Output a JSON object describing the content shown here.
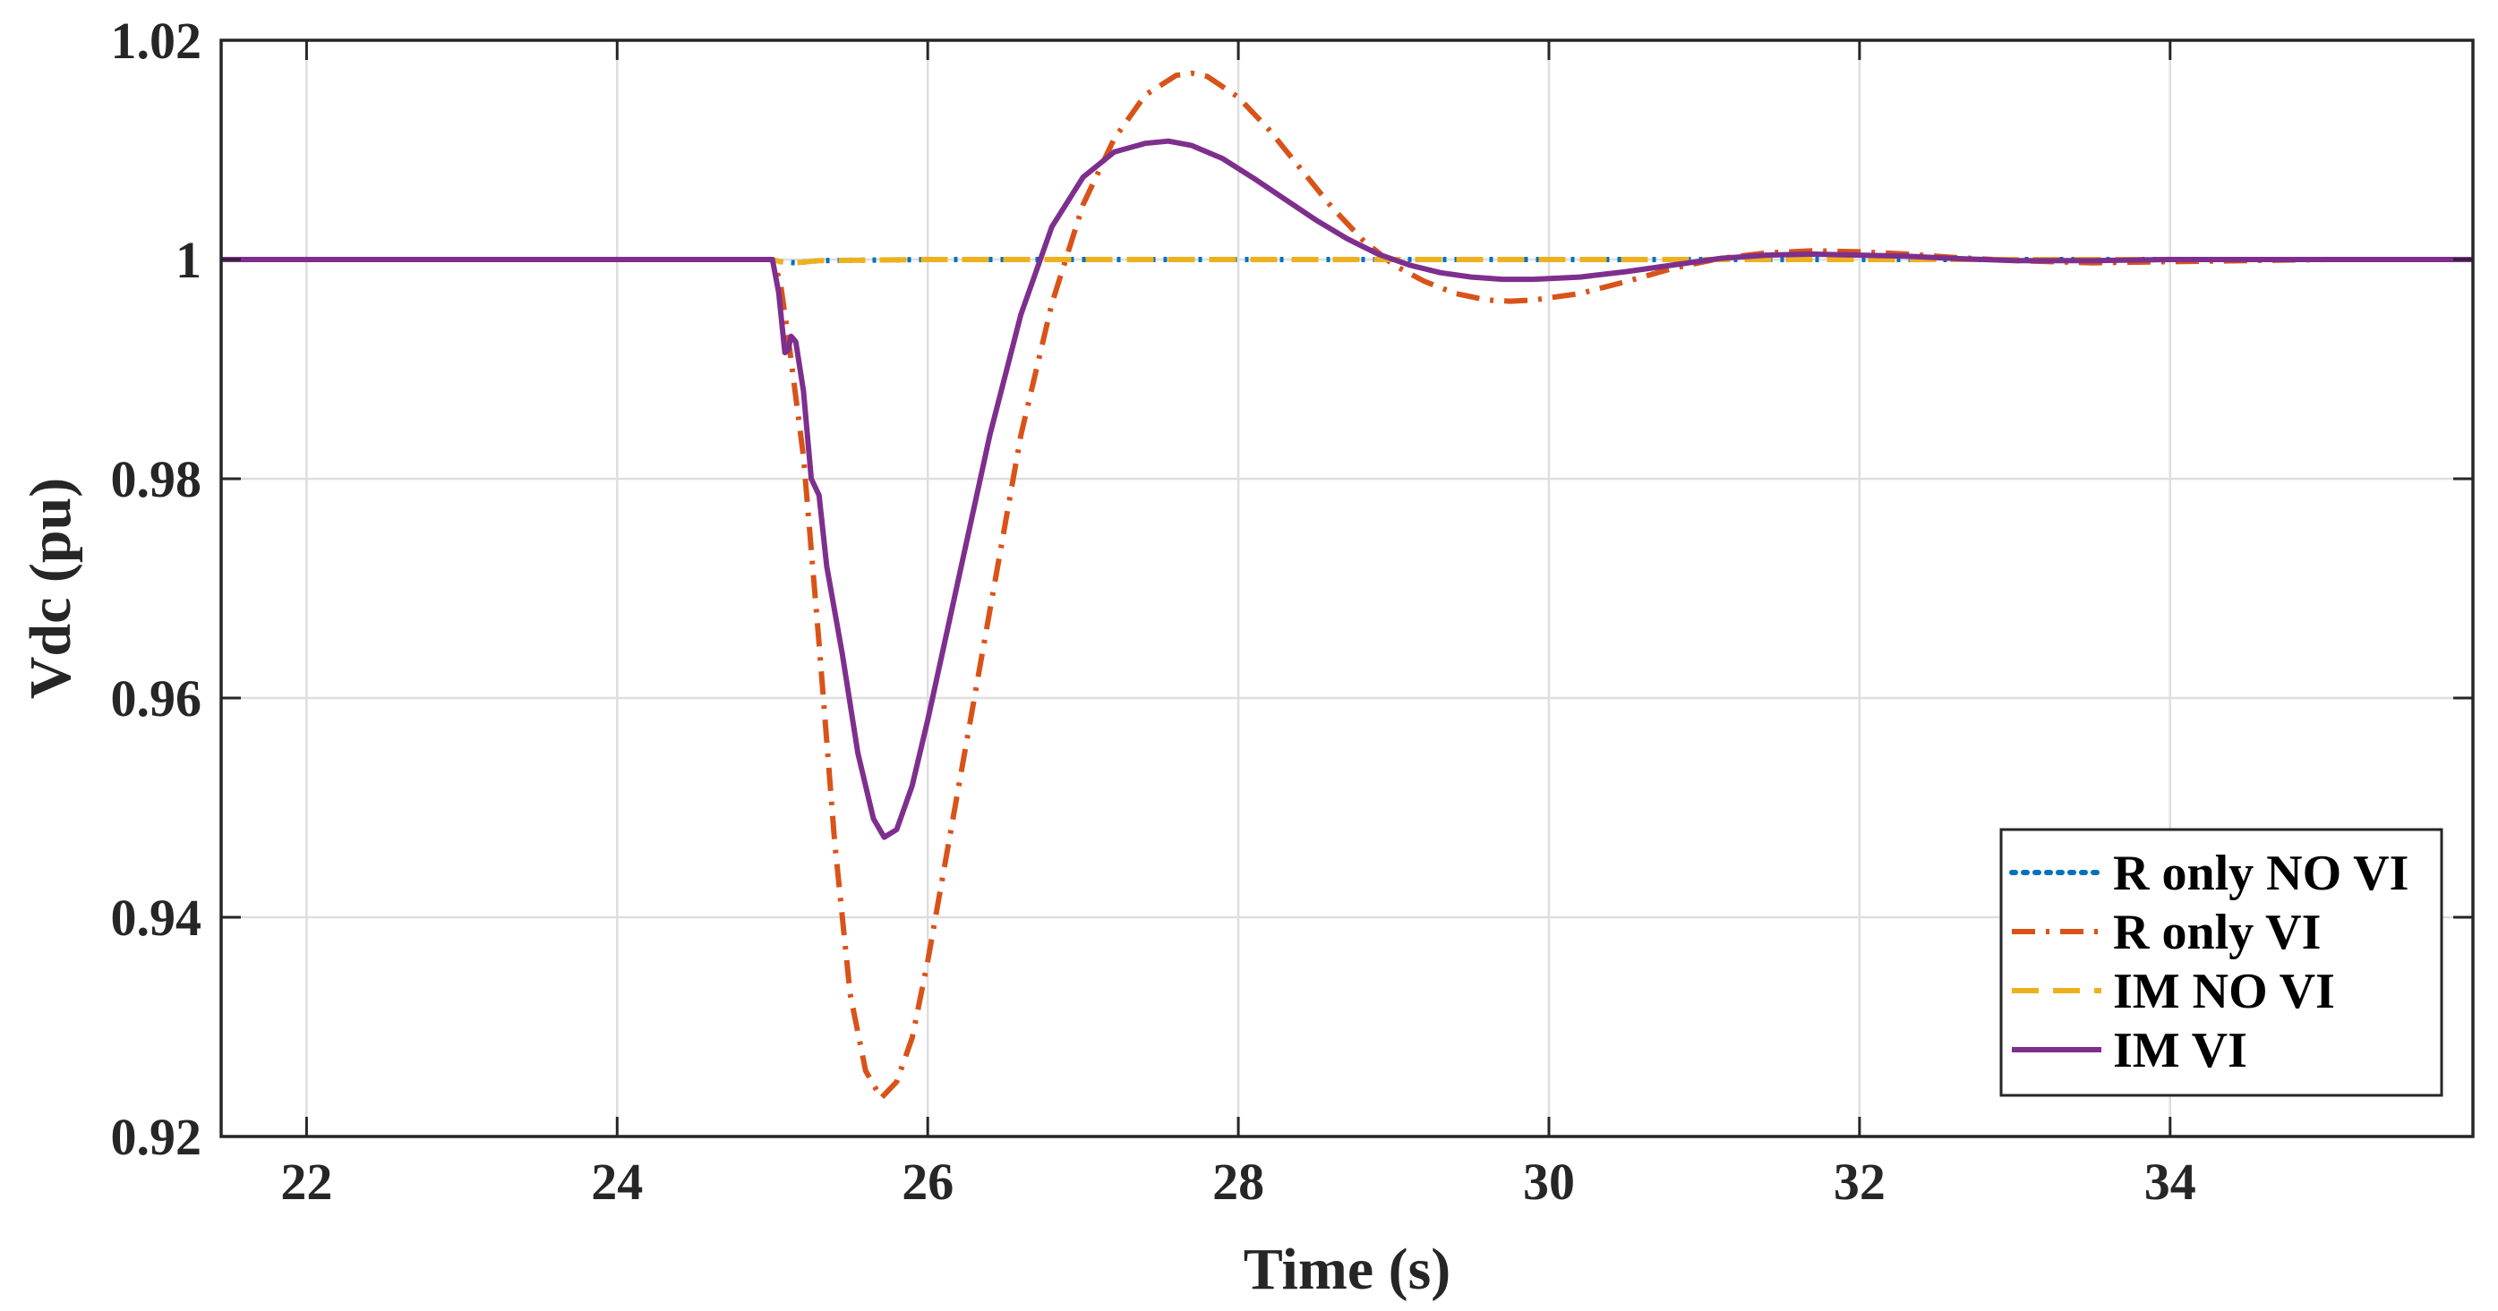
{
  "chart_data": {
    "type": "line",
    "title": "",
    "xlabel": "Time (s)",
    "ylabel": "Vdc (pu)",
    "xlim": [
      21.45,
      35.95
    ],
    "ylim": [
      0.92,
      1.02
    ],
    "xticks": [
      22,
      24,
      26,
      28,
      30,
      32,
      34
    ],
    "xtick_labels": [
      "22",
      "24",
      "26",
      "28",
      "30",
      "32",
      "34"
    ],
    "yticks": [
      0.92,
      0.94,
      0.96,
      0.98,
      1.0,
      1.02
    ],
    "ytick_labels": [
      "0.92",
      "0.94",
      "0.96",
      "0.98",
      "1",
      "1.02"
    ],
    "grid": true,
    "legend_position": "bottom-right",
    "series": [
      {
        "name": "R only NO VI",
        "color": "#0072BD",
        "style": "dotted",
        "x": [
          21.45,
          25.0,
          25.05,
          25.15,
          25.3,
          26.0,
          30.0,
          32.0,
          35.95
        ],
        "y": [
          1.0,
          1.0,
          0.9998,
          0.9997,
          0.9999,
          1.0,
          1.0,
          1.0,
          1.0
        ]
      },
      {
        "name": "R only VI",
        "color": "#D95319",
        "style": "dashdot",
        "x": [
          21.45,
          25.0,
          25.05,
          25.1,
          25.2,
          25.3,
          25.4,
          25.5,
          25.6,
          25.7,
          25.8,
          25.9,
          26.0,
          26.2,
          26.4,
          26.6,
          26.8,
          27.0,
          27.2,
          27.4,
          27.6,
          27.7,
          27.8,
          28.0,
          28.2,
          28.4,
          28.6,
          28.8,
          29.0,
          29.2,
          29.4,
          29.6,
          29.75,
          29.9,
          30.2,
          30.5,
          30.8,
          31.1,
          31.4,
          31.7,
          32.0,
          32.3,
          32.6,
          33.0,
          33.5,
          34.0,
          34.5,
          35.0,
          35.95
        ],
        "y": [
          1.0,
          1.0,
          0.998,
          0.993,
          0.982,
          0.965,
          0.947,
          0.933,
          0.926,
          0.9235,
          0.925,
          0.929,
          0.936,
          0.952,
          0.968,
          0.984,
          0.996,
          1.005,
          1.011,
          1.015,
          1.0168,
          1.017,
          1.0167,
          1.0148,
          1.0118,
          1.0083,
          1.0048,
          1.0018,
          0.9995,
          0.998,
          0.9969,
          0.9963,
          0.9962,
          0.9963,
          0.9969,
          0.998,
          0.9992,
          1.0001,
          1.0006,
          1.0008,
          1.0007,
          1.0005,
          1.0002,
          0.9999,
          0.9997,
          0.9998,
          0.9999,
          1.0,
          1.0
        ]
      },
      {
        "name": "IM NO VI",
        "color": "#EDB120",
        "style": "dashed",
        "x": [
          21.45,
          25.0,
          25.05,
          25.15,
          25.3,
          26.0,
          30.0,
          32.0,
          35.95
        ],
        "y": [
          1.0,
          1.0,
          0.9998,
          0.9997,
          0.9999,
          1.0,
          1.0,
          1.0,
          1.0
        ]
      },
      {
        "name": "IM VI",
        "color": "#7E2F8E",
        "style": "solid",
        "x": [
          21.45,
          25.0,
          25.04,
          25.08,
          25.1,
          25.12,
          25.15,
          25.2,
          25.25,
          25.3,
          25.35,
          25.45,
          25.55,
          25.65,
          25.72,
          25.8,
          25.9,
          26.0,
          26.2,
          26.4,
          26.6,
          26.8,
          27.0,
          27.2,
          27.4,
          27.55,
          27.7,
          27.9,
          28.1,
          28.3,
          28.5,
          28.7,
          28.9,
          29.1,
          29.3,
          29.5,
          29.7,
          29.9,
          30.2,
          30.5,
          30.8,
          31.1,
          31.4,
          31.7,
          32.0,
          32.3,
          32.6,
          33.0,
          33.5,
          34.0,
          35.95
        ],
        "y": [
          1.0,
          1.0,
          0.997,
          0.9915,
          0.9917,
          0.993,
          0.9925,
          0.988,
          0.98,
          0.9785,
          0.972,
          0.964,
          0.955,
          0.949,
          0.9473,
          0.948,
          0.952,
          0.958,
          0.971,
          0.984,
          0.995,
          1.003,
          1.0075,
          1.0098,
          1.0106,
          1.0108,
          1.0104,
          1.0092,
          1.0074,
          1.0055,
          1.0036,
          1.0019,
          1.0005,
          0.9995,
          0.9988,
          0.9984,
          0.9982,
          0.9982,
          0.9984,
          0.9989,
          0.9995,
          1.0001,
          1.0004,
          1.0005,
          1.0004,
          1.0003,
          1.0001,
          0.9999,
          0.9999,
          1.0,
          1.0
        ]
      }
    ]
  }
}
